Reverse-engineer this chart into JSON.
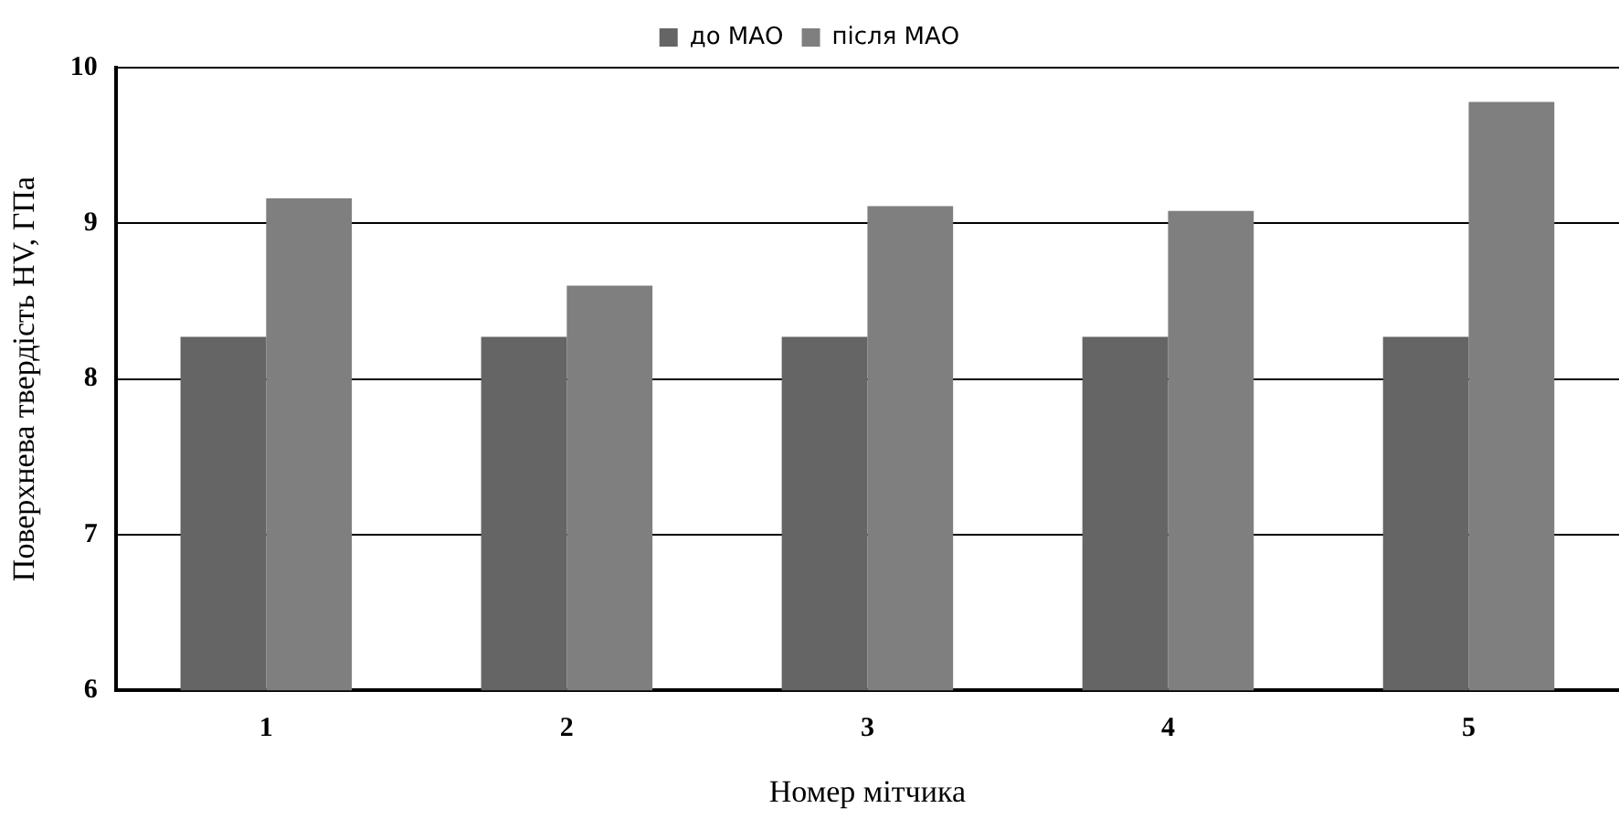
{
  "chart_data": {
    "type": "bar",
    "xlabel": "Номер мітчика",
    "ylabel": "Поверхнева твердість HV, ГПа",
    "categories": [
      "1",
      "2",
      "3",
      "4",
      "5"
    ],
    "series": [
      {
        "name": "до МАО",
        "color": "#656565",
        "values": [
          8.27,
          8.27,
          8.27,
          8.27,
          8.27
        ]
      },
      {
        "name": "після МАО",
        "color": "#7f7f7f",
        "values": [
          9.16,
          8.6,
          9.11,
          9.08,
          9.78
        ]
      }
    ],
    "ylim": [
      6,
      10
    ],
    "yticks": [
      6,
      7,
      8,
      9,
      10
    ],
    "grid": "y",
    "legend": "top"
  }
}
